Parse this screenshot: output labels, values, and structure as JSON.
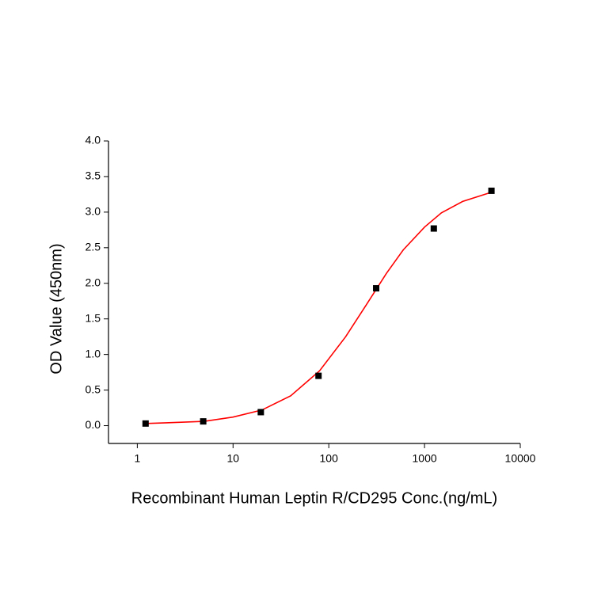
{
  "chart_data": {
    "type": "scatter",
    "x_label": "Recombinant Human Leptin R/CD295 Conc.(ng/mL)",
    "y_label": "OD Value (450nm)",
    "xscale": "log",
    "xlim": [
      0.5,
      10000
    ],
    "xticks": [
      1,
      10,
      100,
      1000,
      10000
    ],
    "ylim": [
      -0.25,
      4.0
    ],
    "yticks": [
      {
        "value": 0,
        "label": "0.0"
      },
      0.5,
      {
        "value": 1,
        "label": "1.0"
      },
      1.5,
      {
        "value": 2,
        "label": "2.0"
      },
      2.5,
      {
        "value": 3,
        "label": "3.0"
      },
      3.5,
      {
        "value": 4,
        "label": "4.0"
      }
    ],
    "series": [
      {
        "type": "scatter",
        "color": "#000000",
        "x": [
          1.22,
          4.88,
          19.5,
          78.1,
          312.5,
          1250,
          5000
        ],
        "values": [
          0.03,
          0.06,
          0.19,
          0.7,
          1.93,
          2.77,
          3.3
        ]
      },
      {
        "type": "line",
        "color": "#ff0000",
        "x": [
          1.22,
          2,
          5,
          10,
          20,
          40,
          80,
          150,
          250,
          400,
          600,
          1000,
          1500,
          2500,
          5000
        ],
        "values": [
          0.03,
          0.04,
          0.06,
          0.12,
          0.22,
          0.42,
          0.77,
          1.25,
          1.71,
          2.14,
          2.47,
          2.79,
          2.99,
          3.15,
          3.28
        ]
      }
    ]
  }
}
